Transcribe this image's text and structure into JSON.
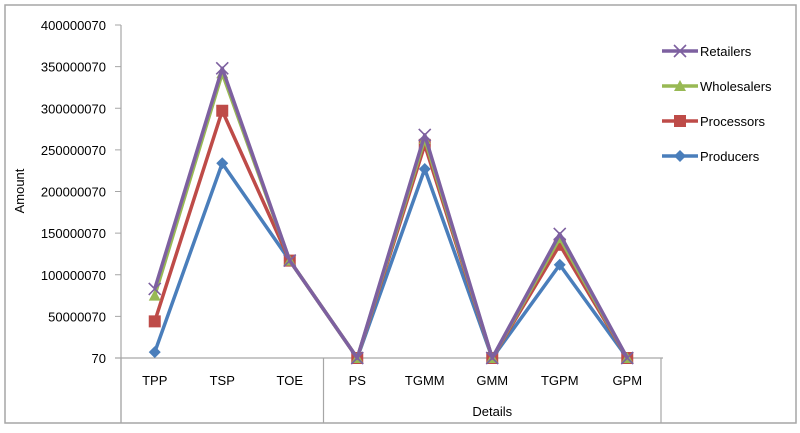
{
  "chart_data": {
    "type": "line",
    "title": "",
    "xlabel": "Details",
    "ylabel": "Amount",
    "ylim": [
      70,
      400000070
    ],
    "y_ticks": [
      "70",
      "50000070",
      "100000070",
      "150000070",
      "200000070",
      "250000070",
      "300000070",
      "350000070",
      "400000070"
    ],
    "y_tick_values": [
      70,
      50000070,
      100000070,
      150000070,
      200000070,
      250000070,
      300000070,
      350000070,
      400000070
    ],
    "categories": [
      "TPP",
      "TSP",
      "TOE",
      "PS",
      "TGMM",
      "GMM",
      "TGPM",
      "GPM"
    ],
    "category_groups": [
      {
        "label": "",
        "categories": [
          "TPP",
          "TSP",
          "TOE"
        ]
      },
      {
        "label": "Details",
        "categories": [
          "PS",
          "TGMM",
          "GMM",
          "TGPM",
          "GPM"
        ]
      }
    ],
    "grid": false,
    "legend_position": "right",
    "series": [
      {
        "name": "Producers",
        "color": "#4a7ebb",
        "marker": "diamond",
        "values": [
          7000070,
          234000070,
          117000070,
          70,
          227000070,
          70,
          112000070,
          70
        ]
      },
      {
        "name": "Processors",
        "color": "#be4b48",
        "marker": "square",
        "values": [
          44000070,
          297000070,
          117000070,
          70,
          256000070,
          70,
          136000070,
          70
        ]
      },
      {
        "name": "Wholesalers",
        "color": "#98b954",
        "marker": "triangle",
        "values": [
          75000070,
          342000070,
          117000070,
          70,
          263000070,
          70,
          144000070,
          70
        ]
      },
      {
        "name": "Retailers",
        "color": "#7d60a0",
        "marker": "x",
        "values": [
          83000070,
          348000070,
          117000070,
          70,
          268000070,
          70,
          149000070,
          70
        ]
      }
    ],
    "legend_order": [
      "Retailers",
      "Wholesalers",
      "Processors",
      "Producers"
    ]
  }
}
